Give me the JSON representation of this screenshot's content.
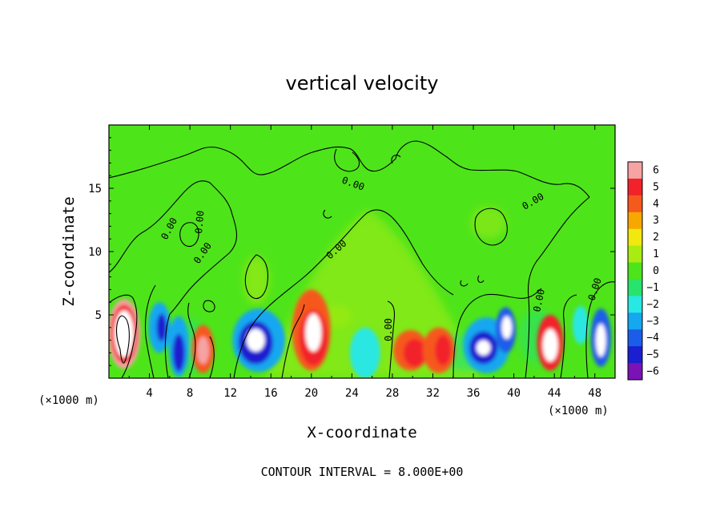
{
  "chart_data": {
    "type": "heatmap",
    "title": "vertical velocity",
    "xlabel": "X-coordinate",
    "ylabel": "Z-coordinate",
    "x_unit_label": "(×1000 m)",
    "y_unit_label": "(×1000 m)",
    "xlim": [
      0,
      50
    ],
    "ylim": [
      0,
      20
    ],
    "x_ticks": [
      4,
      8,
      12,
      16,
      20,
      24,
      28,
      32,
      36,
      40,
      44,
      48
    ],
    "y_ticks": [
      5,
      10,
      15
    ],
    "colorbar": {
      "levels": [
        6,
        5,
        4,
        3,
        2,
        1,
        0,
        -1,
        -2,
        -3,
        -4,
        -5,
        -6
      ],
      "colors": [
        "#f6a3a3",
        "#f2222a",
        "#f6591c",
        "#f8a700",
        "#f0e80f",
        "#a8ec12",
        "#4ee41a",
        "#28e36c",
        "#29e7e2",
        "#15a7f0",
        "#1a5de9",
        "#1a1fd0",
        "#7a12b6"
      ]
    },
    "contour_interval_note": "CONTOUR INTERVAL = 8.000E+00",
    "contour_labels": [
      "0.00",
      "0.00",
      "0.00",
      "0.00",
      "0.00",
      "0.00",
      "0.00",
      "0.00",
      "0.00"
    ],
    "cells": [
      {
        "x": 1.5,
        "z": 3.5,
        "w": 3.2,
        "h": 5.5,
        "v": 6
      },
      {
        "x": 1.5,
        "z": 3.5,
        "w": 2.6,
        "h": 4.6,
        "v": 5
      },
      {
        "x": 1.5,
        "z": 3.5,
        "w": 1.9,
        "h": 3.7,
        "v": 7
      },
      {
        "x": 5.0,
        "z": 4.0,
        "w": 2.2,
        "h": 4.0,
        "v": -3
      },
      {
        "x": 5.2,
        "z": 4.0,
        "w": 1.0,
        "h": 2.2,
        "v": -5
      },
      {
        "x": 6.9,
        "z": 2.5,
        "w": 2.0,
        "h": 4.8,
        "v": -3
      },
      {
        "x": 6.9,
        "z": 2.0,
        "w": 1.2,
        "h": 3.0,
        "v": -5
      },
      {
        "x": 9.3,
        "z": 2.3,
        "w": 2.2,
        "h": 3.8,
        "v": 4
      },
      {
        "x": 9.3,
        "z": 2.2,
        "w": 1.2,
        "h": 2.2,
        "v": 6
      },
      {
        "x": 14.8,
        "z": 3.0,
        "w": 5.2,
        "h": 5.0,
        "v": -3
      },
      {
        "x": 14.5,
        "z": 2.8,
        "w": 3.4,
        "h": 3.4,
        "v": -5
      },
      {
        "x": 14.5,
        "z": 3.0,
        "w": 1.8,
        "h": 1.8,
        "v": -7
      },
      {
        "x": 20.0,
        "z": 3.8,
        "w": 3.8,
        "h": 6.4,
        "v": 4
      },
      {
        "x": 20.2,
        "z": 3.2,
        "w": 2.8,
        "h": 4.4,
        "v": 5
      },
      {
        "x": 20.2,
        "z": 3.6,
        "w": 1.6,
        "h": 3.0,
        "v": 7
      },
      {
        "x": 25.3,
        "z": 2.0,
        "w": 3.0,
        "h": 4.0,
        "v": -2
      },
      {
        "x": 29.8,
        "z": 2.2,
        "w": 3.4,
        "h": 3.2,
        "v": 4
      },
      {
        "x": 30.2,
        "z": 2.0,
        "w": 2.2,
        "h": 2.2,
        "v": 5
      },
      {
        "x": 32.6,
        "z": 2.2,
        "w": 3.2,
        "h": 3.6,
        "v": 4
      },
      {
        "x": 33.0,
        "z": 2.2,
        "w": 1.6,
        "h": 2.4,
        "v": 5
      },
      {
        "x": 37.3,
        "z": 2.6,
        "w": 4.6,
        "h": 4.4,
        "v": -3
      },
      {
        "x": 37.0,
        "z": 2.4,
        "w": 2.8,
        "h": 2.6,
        "v": -5
      },
      {
        "x": 37.0,
        "z": 2.4,
        "w": 1.4,
        "h": 1.2,
        "v": -7
      },
      {
        "x": 39.2,
        "z": 3.8,
        "w": 2.0,
        "h": 3.6,
        "v": -4
      },
      {
        "x": 39.3,
        "z": 4.0,
        "w": 1.0,
        "h": 1.8,
        "v": -7
      },
      {
        "x": 43.6,
        "z": 2.8,
        "w": 2.6,
        "h": 4.4,
        "v": 5
      },
      {
        "x": 43.6,
        "z": 2.6,
        "w": 1.5,
        "h": 2.6,
        "v": 7
      },
      {
        "x": 46.6,
        "z": 4.2,
        "w": 1.6,
        "h": 3.0,
        "v": -2
      },
      {
        "x": 48.6,
        "z": 3.2,
        "w": 2.0,
        "h": 4.6,
        "v": -4
      },
      {
        "x": 48.6,
        "z": 3.0,
        "w": 1.0,
        "h": 2.6,
        "v": -7
      }
    ]
  }
}
